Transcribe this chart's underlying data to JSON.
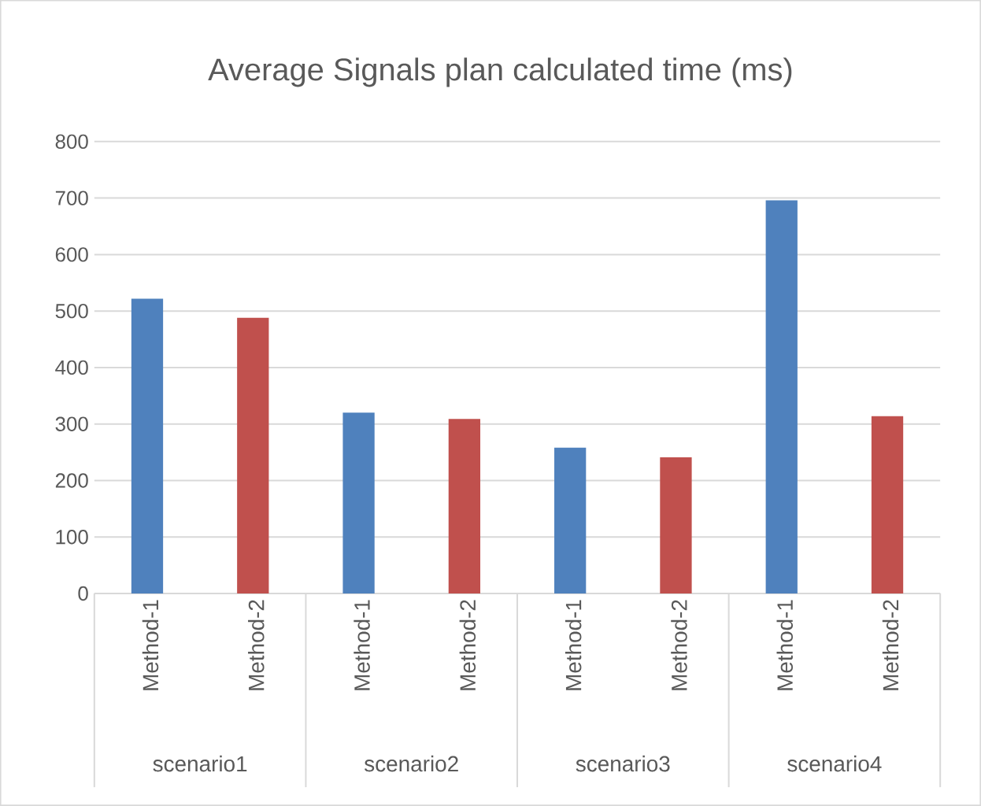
{
  "chart_data": {
    "type": "bar",
    "title": "Average Signals plan calculated time (ms)",
    "categories": [
      "Method-1",
      "Method-2",
      "Method-1",
      "Method-2",
      "Method-1",
      "Method-2",
      "Method-1",
      "Method-2"
    ],
    "values": [
      522,
      488,
      320,
      309,
      258,
      241,
      696,
      314
    ],
    "colors": [
      "#4f81bd",
      "#c0504d",
      "#4f81bd",
      "#c0504d",
      "#4f81bd",
      "#c0504d",
      "#4f81bd",
      "#c0504d"
    ],
    "annotations": [
      "scenario1",
      "scenario2",
      "scenario3",
      "scenario4"
    ],
    "ylim": [
      0,
      800
    ],
    "yticks": [
      0,
      100,
      200,
      300,
      400,
      500,
      600,
      700,
      800
    ],
    "grid": "y"
  }
}
